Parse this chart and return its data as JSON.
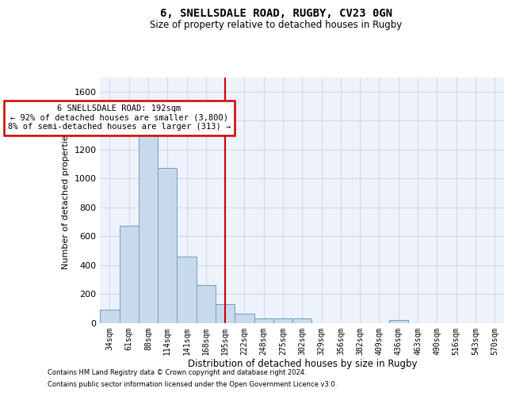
{
  "title1": "6, SNELLSDALE ROAD, RUGBY, CV23 0GN",
  "title2": "Size of property relative to detached houses in Rugby",
  "xlabel": "Distribution of detached houses by size in Rugby",
  "ylabel": "Number of detached properties",
  "categories": [
    "34sqm",
    "61sqm",
    "88sqm",
    "114sqm",
    "141sqm",
    "168sqm",
    "195sqm",
    "222sqm",
    "248sqm",
    "275sqm",
    "302sqm",
    "329sqm",
    "356sqm",
    "382sqm",
    "409sqm",
    "436sqm",
    "463sqm",
    "490sqm",
    "516sqm",
    "543sqm",
    "570sqm"
  ],
  "values": [
    90,
    670,
    1300,
    1070,
    460,
    260,
    130,
    65,
    30,
    30,
    30,
    0,
    0,
    0,
    0,
    20,
    0,
    0,
    0,
    0,
    0
  ],
  "bar_color": "#c9d9ec",
  "bar_edge_color": "#6b9dc2",
  "highlight_index": 6,
  "highlight_line_color": "#cc0000",
  "annotation_box_color": "#cc0000",
  "annotation_text_line1": "6 SNELLSDALE ROAD: 192sqm",
  "annotation_text_line2": "← 92% of detached houses are smaller (3,800)",
  "annotation_text_line3": "8% of semi-detached houses are larger (313) →",
  "ylim": [
    0,
    1700
  ],
  "yticks": [
    0,
    200,
    400,
    600,
    800,
    1000,
    1200,
    1400,
    1600
  ],
  "grid_color": "#d0d8e8",
  "bg_color": "#eef2fa",
  "footer1": "Contains HM Land Registry data © Crown copyright and database right 2024.",
  "footer2": "Contains public sector information licensed under the Open Government Licence v3.0."
}
